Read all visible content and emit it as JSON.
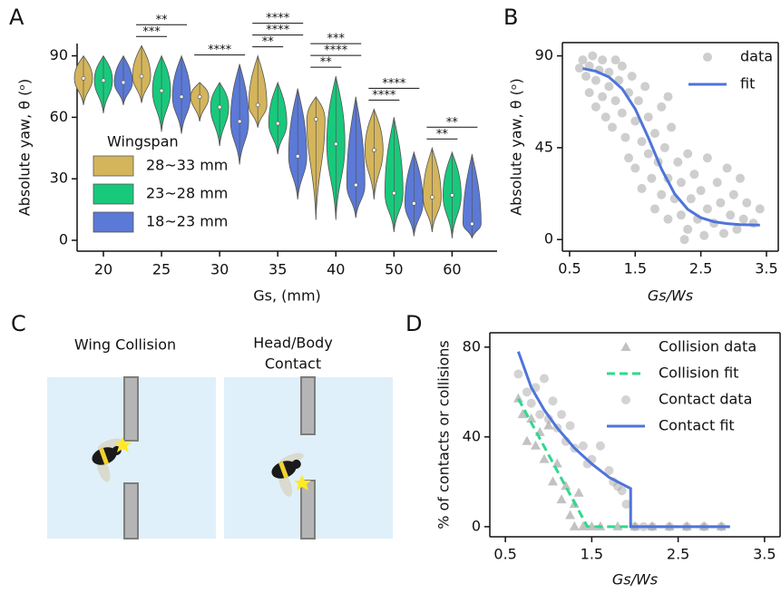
{
  "chart_data": [
    {
      "type": "violin",
      "panel": "A",
      "x_label": "Gs, (mm)",
      "y_label": "Absolute yaw, θ (ᵒ)",
      "categories": [
        "20",
        "25",
        "30",
        "35",
        "40",
        "50",
        "60"
      ],
      "ylim": [
        -5.3,
        96
      ],
      "yticks": [
        0,
        30,
        60,
        90
      ],
      "legend_title": "Wingspan",
      "series": [
        {
          "name": "28~33 mm",
          "color": "#d4b55c",
          "values": [
            79,
            80,
            70,
            66,
            59,
            44,
            21
          ],
          "low": [
            66,
            67,
            58,
            55,
            10,
            20,
            4
          ],
          "high": [
            90,
            95,
            77,
            90,
            70,
            64,
            45
          ]
        },
        {
          "name": "23~28 mm",
          "color": "#18c97c",
          "values": [
            78,
            73,
            65,
            57,
            47,
            23,
            22
          ],
          "low": [
            62,
            53,
            46,
            42,
            10,
            4,
            1
          ],
          "high": [
            90,
            90,
            77,
            77,
            80,
            60,
            43
          ]
        },
        {
          "name": "18~23 mm",
          "color": "#5b79d6",
          "values": [
            77,
            70,
            58,
            41,
            27,
            18,
            8
          ],
          "low": [
            66,
            52,
            37,
            20,
            11,
            2,
            1
          ],
          "high": [
            90,
            90,
            86,
            74,
            70,
            43,
            42
          ]
        }
      ],
      "significance": [
        [],
        [
          "**",
          "***"
        ],
        [
          "****"
        ],
        [
          "****",
          "****",
          "**"
        ],
        [
          "***",
          "****",
          "**"
        ],
        [
          "****",
          "****"
        ],
        [
          "**",
          "**"
        ]
      ]
    },
    {
      "type": "scatter",
      "panel": "B",
      "x_label": "Gs/Ws",
      "y_label": "Absolute yaw, θ (ᵒ)",
      "xlim": [
        0.39,
        3.68
      ],
      "ylim": [
        -5.7,
        96.5
      ],
      "xticks": [
        0.5,
        1.5,
        2.5,
        3.5
      ],
      "yticks": [
        0,
        45,
        90
      ],
      "series": [
        {
          "name": "data",
          "mode": "markers",
          "marker": "circle",
          "color": "#9e9e9e",
          "x": [
            0.7,
            0.75,
            0.8,
            0.8,
            0.85,
            0.9,
            0.9,
            0.95,
            1.0,
            1.0,
            1.05,
            1.1,
            1.1,
            1.15,
            1.2,
            1.2,
            1.25,
            1.3,
            1.3,
            1.35,
            1.4,
            1.4,
            1.45,
            1.5,
            1.5,
            1.55,
            1.6,
            1.6,
            1.65,
            1.7,
            1.7,
            1.75,
            1.8,
            1.8,
            1.85,
            1.9,
            1.9,
            1.95,
            2.0,
            2.0,
            2.05,
            2.1,
            2.15,
            2.2,
            2.2,
            2.3,
            2.3,
            2.35,
            2.4,
            2.45,
            2.5,
            2.55,
            2.6,
            2.6,
            2.7,
            2.75,
            2.8,
            2.85,
            2.9,
            2.95,
            3.0,
            3.05,
            3.1,
            3.15,
            3.2,
            3.3,
            3.4,
            0.65,
            2.25,
            2.0
          ],
          "values": [
            88,
            80,
            85,
            72,
            90,
            78,
            65,
            83,
            88,
            70,
            60,
            82,
            75,
            55,
            88,
            68,
            78,
            62,
            85,
            50,
            72,
            40,
            80,
            58,
            35,
            68,
            48,
            25,
            75,
            42,
            60,
            30,
            52,
            15,
            38,
            65,
            22,
            45,
            30,
            10,
            55,
            20,
            38,
            12,
            28,
            42,
            5,
            20,
            32,
            10,
            24,
            2,
            15,
            40,
            8,
            28,
            18,
            3,
            35,
            12,
            22,
            5,
            30,
            10,
            18,
            8,
            15,
            84,
            0,
            70
          ]
        },
        {
          "name": "fit",
          "mode": "line",
          "color": "#4f74d9",
          "x": [
            0.7,
            0.9,
            1.1,
            1.3,
            1.5,
            1.7,
            1.9,
            2.1,
            2.3,
            2.5,
            2.7,
            2.9,
            3.1,
            3.4
          ],
          "values": [
            83.8,
            82.5,
            79.6,
            73.9,
            64.0,
            49.9,
            34.6,
            22.4,
            14.8,
            10.7,
            8.7,
            7.8,
            7.3,
            7.1
          ]
        }
      ]
    },
    {
      "type": "scatter",
      "panel": "D",
      "x_label": "Gs/Ws",
      "y_label": "% of contacts or collisions",
      "xlim": [
        0.32,
        3.68
      ],
      "ylim": [
        -4.5,
        86.4
      ],
      "xticks": [
        0.5,
        1.5,
        2.5,
        3.5
      ],
      "yticks": [
        0,
        40,
        80
      ],
      "series": [
        {
          "name": "Collision data",
          "mode": "markers",
          "marker": "triangle",
          "color": "#a8a8a8",
          "x": [
            0.65,
            0.7,
            0.75,
            0.8,
            0.85,
            0.9,
            0.95,
            1.0,
            1.05,
            1.1,
            1.15,
            1.2,
            1.25,
            1.3,
            1.35,
            1.4,
            1.3,
            1.5,
            1.6,
            1.8,
            2.0,
            2.2,
            2.4,
            2.6,
            2.8,
            3.0
          ],
          "values": [
            57,
            50,
            38,
            48,
            36,
            42,
            30,
            45,
            20,
            28,
            12,
            18,
            5,
            10,
            15,
            0,
            0,
            0,
            0,
            0,
            0,
            0,
            0,
            0,
            0,
            0
          ]
        },
        {
          "name": "Collision fit",
          "mode": "line",
          "dash": true,
          "color": "#2fd98d",
          "x": [
            0.65,
            1.45,
            3.1
          ],
          "values": [
            57,
            0,
            0
          ]
        },
        {
          "name": "Contact data",
          "mode": "markers",
          "marker": "circle",
          "color": "#a8a8a8",
          "x": [
            0.65,
            0.75,
            0.8,
            0.85,
            0.9,
            0.95,
            1.0,
            1.05,
            1.1,
            1.15,
            1.2,
            1.25,
            1.3,
            1.4,
            1.45,
            1.5,
            1.6,
            1.7,
            1.75,
            1.8,
            1.85,
            1.9,
            2.0,
            2.1,
            2.2,
            2.4,
            2.6,
            2.8,
            3.0
          ],
          "values": [
            68,
            60,
            55,
            62,
            50,
            66,
            48,
            56,
            44,
            50,
            38,
            45,
            35,
            36,
            28,
            30,
            36,
            25,
            20,
            18,
            16,
            10,
            0,
            0,
            0,
            0,
            0,
            0,
            0
          ]
        },
        {
          "name": "Contact fit",
          "mode": "line",
          "color": "#4f74d9",
          "x": [
            0.65,
            0.8,
            0.95,
            1.1,
            1.3,
            1.5,
            1.7,
            1.95,
            1.95,
            3.1
          ],
          "values": [
            78,
            62,
            52,
            44,
            35,
            28,
            22,
            17,
            0,
            0
          ]
        }
      ]
    }
  ],
  "panel_c": {
    "panel": "C",
    "left_title": "Wing Collision",
    "right_title": [
      "Head/Body",
      "Contact"
    ]
  }
}
